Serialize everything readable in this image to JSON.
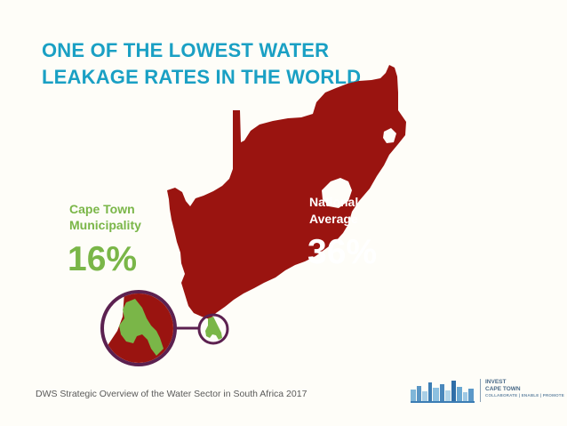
{
  "title": "ONE OF THE LOWEST WATER LEAKAGE RATES IN THE WORLD",
  "cape_town": {
    "label_line1": "Cape Town",
    "label_line2": "Municipality",
    "value": "16%"
  },
  "national": {
    "label_line1": "National",
    "label_line2": "Average",
    "value": "36%"
  },
  "source": "DWS Strategic Overview of the Water Sector in South Africa 2017",
  "logo": {
    "line1": "INVEST",
    "line2": "CAPE TOWN",
    "tagline": "COLLABORATE | ENABLE | PROMOTE"
  },
  "colors": {
    "title": "#1aa0c4",
    "map_fill": "#9a1410",
    "cape_town_green": "#7ab648",
    "circle_outline": "#5c2150",
    "background": "#fefdf8"
  },
  "icons": [
    "south-africa-map",
    "cape-town-zoom-circle",
    "invest-cape-town-skyline-logo"
  ]
}
